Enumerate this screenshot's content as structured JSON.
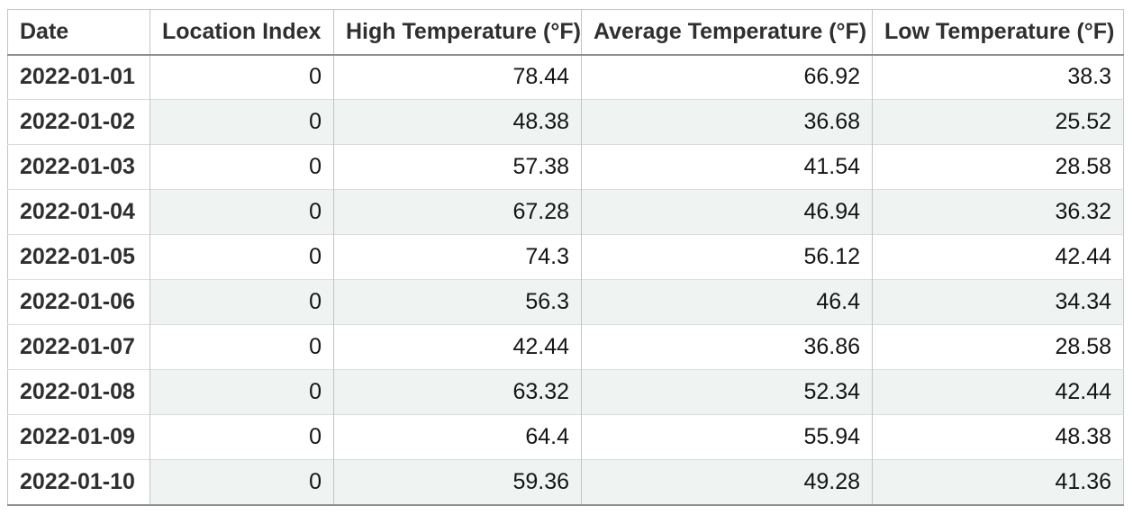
{
  "chart_data": {
    "type": "table",
    "title": "",
    "columns": [
      "Date",
      "Location Index",
      "High Temperature (°F)",
      "Average Temperature (°F)",
      "Low Temperature (°F)"
    ],
    "rows": [
      [
        "2022-01-01",
        "0",
        "78.44",
        "66.92",
        "38.3"
      ],
      [
        "2022-01-02",
        "0",
        "48.38",
        "36.68",
        "25.52"
      ],
      [
        "2022-01-03",
        "0",
        "57.38",
        "41.54",
        "28.58"
      ],
      [
        "2022-01-04",
        "0",
        "67.28",
        "46.94",
        "36.32"
      ],
      [
        "2022-01-05",
        "0",
        "74.3",
        "56.12",
        "42.44"
      ],
      [
        "2022-01-06",
        "0",
        "56.3",
        "46.4",
        "34.34"
      ],
      [
        "2022-01-07",
        "0",
        "42.44",
        "36.86",
        "28.58"
      ],
      [
        "2022-01-08",
        "0",
        "63.32",
        "52.34",
        "42.44"
      ],
      [
        "2022-01-09",
        "0",
        "64.4",
        "55.94",
        "48.38"
      ],
      [
        "2022-01-10",
        "0",
        "59.36",
        "49.28",
        "41.36"
      ]
    ],
    "layout": {
      "zebra_striping": "even rows tinted, first column always white",
      "first_column_style": "bold row header, left-aligned",
      "numeric_alignment": "right"
    }
  },
  "colors": {
    "background": "#ffffff",
    "stripe": "#eff3f2",
    "heavy_border": "#8e8e8e",
    "light_border": "#c4c4c4",
    "row_border": "#dcdcdc",
    "header_text": "#2f2f2f",
    "cell_text": "#151515"
  }
}
